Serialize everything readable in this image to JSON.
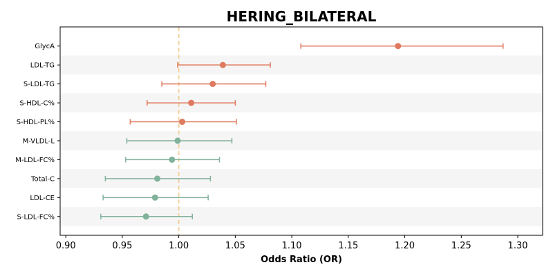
{
  "chart_data": {
    "type": "forest",
    "title": "HERING_BILATERAL",
    "xlabel": "Odds Ratio (OR)",
    "ylabel": "",
    "xlim": [
      0.895,
      1.322
    ],
    "xticks": [
      0.9,
      0.95,
      1.0,
      1.05,
      1.1,
      1.15,
      1.2,
      1.25,
      1.3
    ],
    "xtick_labels": [
      "0.90",
      "0.95",
      "1.00",
      "1.05",
      "1.10",
      "1.15",
      "1.20",
      "1.25",
      "1.30"
    ],
    "reference_line": 1.0,
    "grid": false,
    "striped_rows": true,
    "colors": {
      "above_one": "#e07a5f",
      "below_one": "#81b29a",
      "reference": "#f2cc8f",
      "stripe": "#f5f5f5"
    },
    "rows": [
      {
        "label": "GlycA",
        "or": 1.194,
        "lower": 1.108,
        "upper": 1.287
      },
      {
        "label": "LDL-TG",
        "or": 1.039,
        "lower": 0.999,
        "upper": 1.081
      },
      {
        "label": "S-LDL-TG",
        "or": 1.03,
        "lower": 0.985,
        "upper": 1.077
      },
      {
        "label": "S-HDL-C%",
        "or": 1.011,
        "lower": 0.972,
        "upper": 1.05
      },
      {
        "label": "S-HDL-PL%",
        "or": 1.003,
        "lower": 0.957,
        "upper": 1.051
      },
      {
        "label": "M-VLDL-L",
        "or": 0.999,
        "lower": 0.954,
        "upper": 1.047
      },
      {
        "label": "M-LDL-FC%",
        "or": 0.994,
        "lower": 0.953,
        "upper": 1.036
      },
      {
        "label": "Total-C",
        "or": 0.981,
        "lower": 0.935,
        "upper": 1.028
      },
      {
        "label": "LDL-CE",
        "or": 0.979,
        "lower": 0.933,
        "upper": 1.026
      },
      {
        "label": "S-LDL-FC%",
        "or": 0.971,
        "lower": 0.931,
        "upper": 1.012
      }
    ]
  }
}
